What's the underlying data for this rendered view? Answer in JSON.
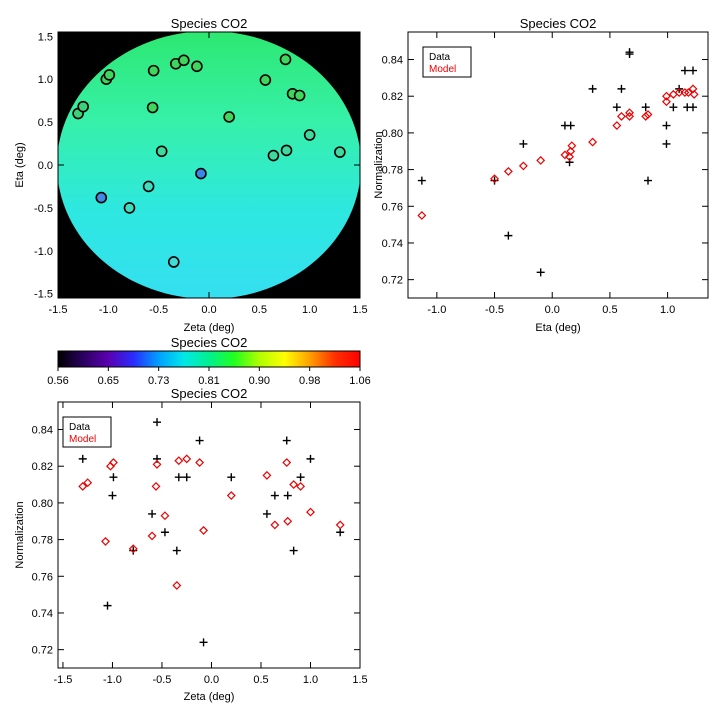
{
  "chart_data": [
    {
      "id": "map",
      "type": "heatmap",
      "title": "Species CO2",
      "xlabel": "Zeta (deg)",
      "ylabel": "Eta (deg)",
      "xlim": [
        -1.5,
        1.5
      ],
      "ylim": [
        -1.55,
        1.55
      ],
      "xticks": [
        -1.5,
        -1.0,
        -0.5,
        0.0,
        0.5,
        1.0,
        1.5
      ],
      "yticks": [
        -1.5,
        -1.0,
        -0.5,
        0.0,
        0.5,
        1.0,
        1.5
      ],
      "background_color": "#000000",
      "field_gradient": [
        "#2de870",
        "#36f0a8",
        "#2ee8e0",
        "#35dff0"
      ],
      "points": [
        {
          "x": -1.3,
          "y": 0.6,
          "value": 0.81,
          "color": "#3dd27a"
        },
        {
          "x": -1.25,
          "y": 0.68,
          "value": 0.81,
          "color": "#3dd27a"
        },
        {
          "x": -1.02,
          "y": 1.0,
          "value": 0.82,
          "color": "#3fd65e"
        },
        {
          "x": -0.99,
          "y": 1.05,
          "value": 0.82,
          "color": "#3fd65e"
        },
        {
          "x": -0.55,
          "y": 1.1,
          "value": 0.82,
          "color": "#3fd65e"
        },
        {
          "x": -0.33,
          "y": 1.18,
          "value": 0.82,
          "color": "#3fd65e"
        },
        {
          "x": -0.25,
          "y": 1.22,
          "value": 0.82,
          "color": "#3fd65e"
        },
        {
          "x": -0.12,
          "y": 1.15,
          "value": 0.82,
          "color": "#3fd65e"
        },
        {
          "x": 0.56,
          "y": 0.99,
          "value": 0.82,
          "color": "#3fd65e"
        },
        {
          "x": 0.76,
          "y": 1.23,
          "value": 0.83,
          "color": "#3fd65e"
        },
        {
          "x": 0.83,
          "y": 0.83,
          "value": 0.81,
          "color": "#3fd65e"
        },
        {
          "x": 0.9,
          "y": 0.81,
          "value": 0.81,
          "color": "#3fd65e"
        },
        {
          "x": -0.56,
          "y": 0.67,
          "value": 0.81,
          "color": "#3fd65e"
        },
        {
          "x": 0.2,
          "y": 0.56,
          "value": 0.81,
          "color": "#3fd65e"
        },
        {
          "x": 1.0,
          "y": 0.35,
          "value": 0.8,
          "color": "#3fd9a0"
        },
        {
          "x": -0.47,
          "y": 0.16,
          "value": 0.79,
          "color": "#3fd9a0"
        },
        {
          "x": 0.64,
          "y": 0.11,
          "value": 0.8,
          "color": "#3fd9a0"
        },
        {
          "x": 0.77,
          "y": 0.17,
          "value": 0.8,
          "color": "#3fd9a0"
        },
        {
          "x": 1.3,
          "y": 0.15,
          "value": 0.79,
          "color": "#3fd9a0"
        },
        {
          "x": -0.08,
          "y": -0.1,
          "value": 0.72,
          "color": "#3a86e8"
        },
        {
          "x": -0.6,
          "y": -0.25,
          "value": 0.78,
          "color": "#3fdcc0"
        },
        {
          "x": -1.07,
          "y": -0.38,
          "value": 0.74,
          "color": "#3f8ce6"
        },
        {
          "x": -0.79,
          "y": -0.5,
          "value": 0.77,
          "color": "#3fdcc0"
        },
        {
          "x": -0.35,
          "y": -1.13,
          "value": 0.77,
          "color": "#3fdcd8"
        }
      ]
    },
    {
      "id": "colorbar",
      "type": "colorbar",
      "title": "Species CO2",
      "range": [
        0.56,
        1.06
      ],
      "ticks": [
        "0.56",
        "0.65",
        "0.73",
        "0.81",
        "0.90",
        "0.98",
        "1.06"
      ],
      "gradient": [
        "#000000",
        "#2a0060",
        "#5a00b0",
        "#2a2cff",
        "#00a0ff",
        "#00e8e8",
        "#00f090",
        "#20ff20",
        "#b0ff00",
        "#ffff00",
        "#ffa000",
        "#ff3000",
        "#ff0000"
      ]
    },
    {
      "id": "eta_scatter",
      "type": "scatter",
      "title": "Species CO2",
      "xlabel": "Eta (deg)",
      "ylabel": "Normalization",
      "xlim": [
        -1.25,
        1.35
      ],
      "ylim": [
        0.71,
        0.855
      ],
      "xticks": [
        -1.0,
        -0.5,
        0.0,
        0.5,
        1.0
      ],
      "yticks": [
        0.72,
        0.74,
        0.76,
        0.78,
        0.8,
        0.82,
        0.84
      ],
      "legend": {
        "position": "top-left",
        "entries": [
          {
            "name": "Data",
            "color": "#000000"
          },
          {
            "name": "Model",
            "color": "#ee0000"
          }
        ]
      },
      "series": [
        {
          "name": "Data",
          "marker": "plus",
          "color": "#000000",
          "points": [
            [
              -1.13,
              0.774
            ],
            [
              -0.5,
              0.774
            ],
            [
              -0.38,
              0.744
            ],
            [
              -0.25,
              0.794
            ],
            [
              -0.1,
              0.724
            ],
            [
              0.11,
              0.804
            ],
            [
              0.15,
              0.784
            ],
            [
              0.16,
              0.804
            ],
            [
              0.35,
              0.824
            ],
            [
              0.56,
              0.814
            ],
            [
              0.6,
              0.824
            ],
            [
              0.67,
              0.844
            ],
            [
              0.67,
              0.843
            ],
            [
              0.81,
              0.814
            ],
            [
              0.83,
              0.774
            ],
            [
              0.99,
              0.794
            ],
            [
              0.99,
              0.804
            ],
            [
              1.05,
              0.814
            ],
            [
              1.1,
              0.824
            ],
            [
              1.15,
              0.834
            ],
            [
              1.17,
              0.814
            ],
            [
              1.22,
              0.814
            ],
            [
              1.22,
              0.834
            ]
          ]
        },
        {
          "name": "Model",
          "marker": "diamond",
          "color": "#ee0000",
          "points": [
            [
              -1.13,
              0.755
            ],
            [
              -0.5,
              0.775
            ],
            [
              -0.38,
              0.779
            ],
            [
              -0.25,
              0.782
            ],
            [
              -0.1,
              0.785
            ],
            [
              0.11,
              0.788
            ],
            [
              0.15,
              0.787
            ],
            [
              0.16,
              0.79
            ],
            [
              0.17,
              0.793
            ],
            [
              0.35,
              0.795
            ],
            [
              0.56,
              0.804
            ],
            [
              0.6,
              0.809
            ],
            [
              0.67,
              0.811
            ],
            [
              0.67,
              0.809
            ],
            [
              0.81,
              0.809
            ],
            [
              0.83,
              0.81
            ],
            [
              0.99,
              0.817
            ],
            [
              0.99,
              0.82
            ],
            [
              1.05,
              0.821
            ],
            [
              1.1,
              0.822
            ],
            [
              1.15,
              0.822
            ],
            [
              1.18,
              0.822
            ],
            [
              1.22,
              0.824
            ],
            [
              1.23,
              0.821
            ]
          ]
        }
      ]
    },
    {
      "id": "zeta_scatter",
      "type": "scatter",
      "title": "Species CO2",
      "xlabel": "Zeta (deg)",
      "ylabel": "Normalization",
      "xlim": [
        -1.55,
        1.5
      ],
      "ylim": [
        0.71,
        0.855
      ],
      "xticks": [
        -1.5,
        -1.0,
        -0.5,
        0.0,
        0.5,
        1.0,
        1.5
      ],
      "yticks": [
        0.72,
        0.74,
        0.76,
        0.78,
        0.8,
        0.82,
        0.84
      ],
      "legend": {
        "position": "top-left",
        "entries": [
          {
            "name": "Data",
            "color": "#000000"
          },
          {
            "name": "Model",
            "color": "#ee0000"
          }
        ]
      },
      "series": [
        {
          "name": "Data",
          "marker": "plus",
          "color": "#000000",
          "points": [
            [
              -1.3,
              0.824
            ],
            [
              -1.05,
              0.744
            ],
            [
              -1.0,
              0.804
            ],
            [
              -0.99,
              0.814
            ],
            [
              -0.79,
              0.774
            ],
            [
              -0.6,
              0.794
            ],
            [
              -0.55,
              0.844
            ],
            [
              -0.55,
              0.824
            ],
            [
              -0.47,
              0.784
            ],
            [
              -0.35,
              0.774
            ],
            [
              -0.33,
              0.814
            ],
            [
              -0.25,
              0.814
            ],
            [
              -0.12,
              0.834
            ],
            [
              -0.08,
              0.724
            ],
            [
              0.2,
              0.814
            ],
            [
              0.56,
              0.794
            ],
            [
              0.64,
              0.804
            ],
            [
              0.76,
              0.834
            ],
            [
              0.77,
              0.804
            ],
            [
              0.83,
              0.774
            ],
            [
              0.9,
              0.814
            ],
            [
              1.0,
              0.824
            ],
            [
              1.3,
              0.784
            ]
          ]
        },
        {
          "name": "Model",
          "marker": "diamond",
          "color": "#ee0000",
          "points": [
            [
              -1.3,
              0.809
            ],
            [
              -1.25,
              0.811
            ],
            [
              -1.07,
              0.779
            ],
            [
              -1.02,
              0.82
            ],
            [
              -0.99,
              0.822
            ],
            [
              -0.79,
              0.775
            ],
            [
              -0.6,
              0.782
            ],
            [
              -0.56,
              0.809
            ],
            [
              -0.55,
              0.821
            ],
            [
              -0.47,
              0.793
            ],
            [
              -0.35,
              0.755
            ],
            [
              -0.33,
              0.823
            ],
            [
              -0.25,
              0.824
            ],
            [
              -0.12,
              0.822
            ],
            [
              -0.08,
              0.785
            ],
            [
              0.2,
              0.804
            ],
            [
              0.56,
              0.815
            ],
            [
              0.64,
              0.788
            ],
            [
              0.76,
              0.822
            ],
            [
              0.77,
              0.79
            ],
            [
              0.83,
              0.81
            ],
            [
              0.9,
              0.809
            ],
            [
              1.0,
              0.795
            ],
            [
              1.3,
              0.788
            ]
          ]
        }
      ]
    }
  ]
}
